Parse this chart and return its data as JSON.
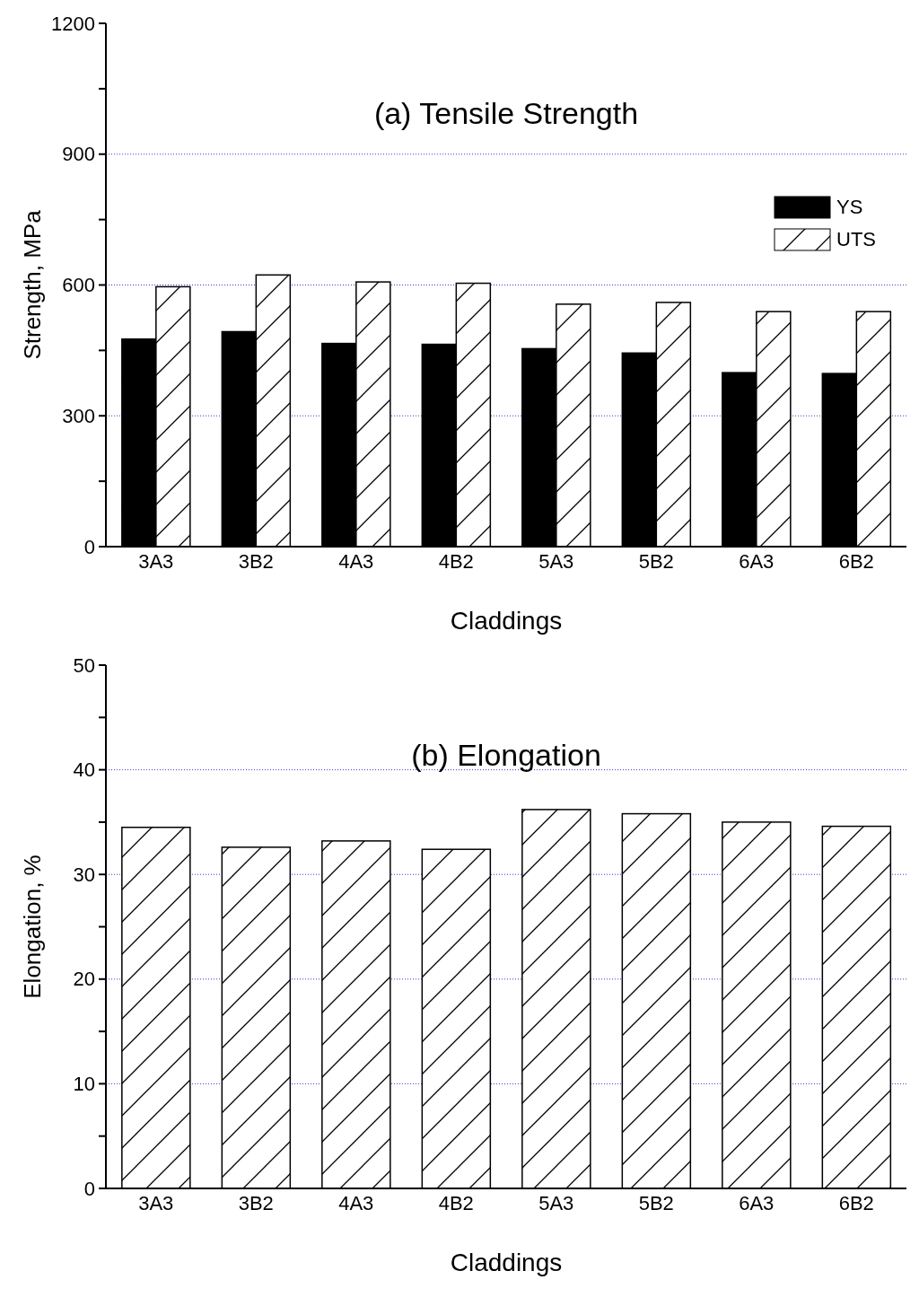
{
  "chart_data": [
    {
      "type": "bar",
      "title": "(a) Tensile Strength",
      "xlabel": "Claddings",
      "ylabel": "Strength, MPa",
      "categories": [
        "3A3",
        "3B2",
        "4A3",
        "4B2",
        "5A3",
        "5B2",
        "6A3",
        "6B2"
      ],
      "series": [
        {
          "name": "YS",
          "color": "#000000",
          "values": [
            476,
            493,
            466,
            464,
            454,
            444,
            399,
            397
          ]
        },
        {
          "name": "UTS",
          "color": "#ffffff",
          "values": [
            596,
            623,
            607,
            604,
            556,
            560,
            539,
            539
          ]
        }
      ],
      "ylim": [
        0,
        1200
      ],
      "yticks": [
        0,
        {
          "value": 150,
          "label": null
        },
        300,
        {
          "value": 450,
          "label": null
        },
        600,
        {
          "value": 750,
          "label": null
        },
        900,
        {
          "value": 1050,
          "label": null
        },
        1200
      ],
      "grid": "y",
      "legend": "top right"
    },
    {
      "type": "bar",
      "title": "(b) Elongation",
      "xlabel": "Claddings",
      "ylabel": "Elongation, %",
      "categories": [
        "3A3",
        "3B2",
        "4A3",
        "4B2",
        "5A3",
        "5B2",
        "6A3",
        "6B2"
      ],
      "series": [
        {
          "color": "#ffffff",
          "values": [
            34.5,
            32.6,
            33.2,
            32.4,
            36.2,
            35.8,
            35.0,
            34.6
          ]
        }
      ],
      "ylim": [
        0,
        50
      ],
      "yticks": [
        0,
        {
          "value": 5,
          "label": null
        },
        10,
        {
          "value": 15,
          "label": null
        },
        20,
        {
          "value": 25,
          "label": null
        },
        30,
        {
          "value": 35,
          "label": null
        },
        40,
        {
          "value": 45,
          "label": null
        },
        50
      ],
      "grid": "y",
      "legend": false
    }
  ]
}
